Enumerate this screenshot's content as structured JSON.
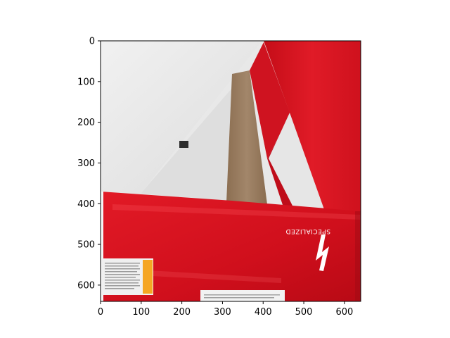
{
  "figure": {
    "background": "#ffffff",
    "x_ticks": [
      "0",
      "100",
      "200",
      "300",
      "400",
      "500",
      "600"
    ],
    "y_ticks": [
      "0",
      "100",
      "200",
      "300",
      "400",
      "500",
      "600"
    ]
  },
  "image": {
    "description_colors": {
      "box_red": "#d7101e",
      "box_red_dark": "#b00812",
      "box_white": "#ececec",
      "cardboard_brown": "#9b7f61",
      "label_orange": "#f5a623"
    },
    "brand_text": "SPECIALIZED",
    "logo_mark": "specialized-s-logo"
  },
  "chart_data": {
    "type": "image",
    "xlim": [
      0,
      640
    ],
    "ylim": [
      640,
      0
    ],
    "x_ticks": [
      0,
      100,
      200,
      300,
      400,
      500,
      600
    ],
    "y_ticks": [
      0,
      100,
      200,
      300,
      400,
      500,
      600
    ]
  }
}
